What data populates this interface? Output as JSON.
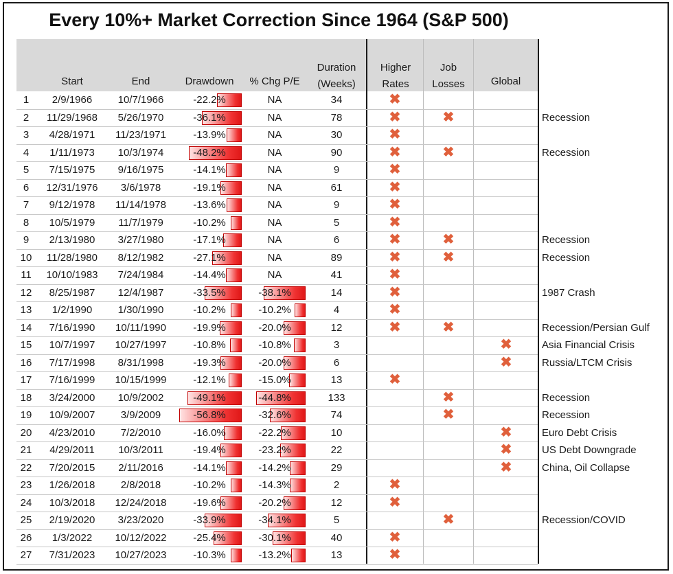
{
  "title": "Every 10%+ Market Correction Since 1964 (S&P 500)",
  "colors": {
    "bar": "#e01818",
    "cross": "#e0603c",
    "header": "#d9d9d9"
  },
  "columns": {
    "start": "Start",
    "end": "End",
    "drawdown": "Drawdown",
    "pe": "% Chg P/E",
    "duration_top": "Duration",
    "duration_bottom": "(Weeks)",
    "rates_top": "Higher",
    "rates_bottom": "Rates",
    "jobs_top": "Job",
    "jobs_bottom": "Losses",
    "global": "Global"
  },
  "cross_glyph": "✖",
  "chart_data": {
    "type": "table",
    "title": "Every 10%+ Market Correction Since 1964 (S&P 500)",
    "rows": [
      {
        "n": "1",
        "start": "2/9/1966",
        "end": "10/7/1966",
        "drawdown": "-22.2%",
        "dd": -22.2,
        "pe": "NA",
        "pe_val": null,
        "duration": "34",
        "rates": true,
        "jobs": false,
        "global": false,
        "note": ""
      },
      {
        "n": "2",
        "start": "11/29/1968",
        "end": "5/26/1970",
        "drawdown": "-36.1%",
        "dd": -36.1,
        "pe": "NA",
        "pe_val": null,
        "duration": "78",
        "rates": true,
        "jobs": true,
        "global": false,
        "note": "Recession"
      },
      {
        "n": "3",
        "start": "4/28/1971",
        "end": "11/23/1971",
        "drawdown": "-13.9%",
        "dd": -13.9,
        "pe": "NA",
        "pe_val": null,
        "duration": "30",
        "rates": true,
        "jobs": false,
        "global": false,
        "note": ""
      },
      {
        "n": "4",
        "start": "1/11/1973",
        "end": "10/3/1974",
        "drawdown": "-48.2%",
        "dd": -48.2,
        "pe": "NA",
        "pe_val": null,
        "duration": "90",
        "rates": true,
        "jobs": true,
        "global": false,
        "note": "Recession"
      },
      {
        "n": "5",
        "start": "7/15/1975",
        "end": "9/16/1975",
        "drawdown": "-14.1%",
        "dd": -14.1,
        "pe": "NA",
        "pe_val": null,
        "duration": "9",
        "rates": true,
        "jobs": false,
        "global": false,
        "note": ""
      },
      {
        "n": "6",
        "start": "12/31/1976",
        "end": "3/6/1978",
        "drawdown": "-19.1%",
        "dd": -19.1,
        "pe": "NA",
        "pe_val": null,
        "duration": "61",
        "rates": true,
        "jobs": false,
        "global": false,
        "note": ""
      },
      {
        "n": "7",
        "start": "9/12/1978",
        "end": "11/14/1978",
        "drawdown": "-13.6%",
        "dd": -13.6,
        "pe": "NA",
        "pe_val": null,
        "duration": "9",
        "rates": true,
        "jobs": false,
        "global": false,
        "note": ""
      },
      {
        "n": "8",
        "start": "10/5/1979",
        "end": "11/7/1979",
        "drawdown": "-10.2%",
        "dd": -10.2,
        "pe": "NA",
        "pe_val": null,
        "duration": "5",
        "rates": true,
        "jobs": false,
        "global": false,
        "note": ""
      },
      {
        "n": "9",
        "start": "2/13/1980",
        "end": "3/27/1980",
        "drawdown": "-17.1%",
        "dd": -17.1,
        "pe": "NA",
        "pe_val": null,
        "duration": "6",
        "rates": true,
        "jobs": true,
        "global": false,
        "note": "Recession"
      },
      {
        "n": "10",
        "start": "11/28/1980",
        "end": "8/12/1982",
        "drawdown": "-27.1%",
        "dd": -27.1,
        "pe": "NA",
        "pe_val": null,
        "duration": "89",
        "rates": true,
        "jobs": true,
        "global": false,
        "note": "Recession"
      },
      {
        "n": "11",
        "start": "10/10/1983",
        "end": "7/24/1984",
        "drawdown": "-14.4%",
        "dd": -14.4,
        "pe": "NA",
        "pe_val": null,
        "duration": "41",
        "rates": true,
        "jobs": false,
        "global": false,
        "note": ""
      },
      {
        "n": "12",
        "start": "8/25/1987",
        "end": "12/4/1987",
        "drawdown": "-33.5%",
        "dd": -33.5,
        "pe": "-38.1%",
        "pe_val": -38.1,
        "duration": "14",
        "rates": true,
        "jobs": false,
        "global": false,
        "note": "1987 Crash"
      },
      {
        "n": "13",
        "start": "1/2/1990",
        "end": "1/30/1990",
        "drawdown": "-10.2%",
        "dd": -10.2,
        "pe": "-10.2%",
        "pe_val": -10.2,
        "duration": "4",
        "rates": true,
        "jobs": false,
        "global": false,
        "note": ""
      },
      {
        "n": "14",
        "start": "7/16/1990",
        "end": "10/11/1990",
        "drawdown": "-19.9%",
        "dd": -19.9,
        "pe": "-20.0%",
        "pe_val": -20.0,
        "duration": "12",
        "rates": true,
        "jobs": true,
        "global": false,
        "note": "Recession/Persian Gulf"
      },
      {
        "n": "15",
        "start": "10/7/1997",
        "end": "10/27/1997",
        "drawdown": "-10.8%",
        "dd": -10.8,
        "pe": "-10.8%",
        "pe_val": -10.8,
        "duration": "3",
        "rates": false,
        "jobs": false,
        "global": true,
        "note": "Asia Financial Crisis"
      },
      {
        "n": "16",
        "start": "7/17/1998",
        "end": "8/31/1998",
        "drawdown": "-19.3%",
        "dd": -19.3,
        "pe": "-20.0%",
        "pe_val": -20.0,
        "duration": "6",
        "rates": false,
        "jobs": false,
        "global": true,
        "note": "Russia/LTCM Crisis"
      },
      {
        "n": "17",
        "start": "7/16/1999",
        "end": "10/15/1999",
        "drawdown": "-12.1%",
        "dd": -12.1,
        "pe": "-15.0%",
        "pe_val": -15.0,
        "duration": "13",
        "rates": true,
        "jobs": false,
        "global": false,
        "note": ""
      },
      {
        "n": "18",
        "start": "3/24/2000",
        "end": "10/9/2002",
        "drawdown": "-49.1%",
        "dd": -49.1,
        "pe": "-44.8%",
        "pe_val": -44.8,
        "duration": "133",
        "rates": false,
        "jobs": true,
        "global": false,
        "note": "Recession"
      },
      {
        "n": "19",
        "start": "10/9/2007",
        "end": "3/9/2009",
        "drawdown": "-56.8%",
        "dd": -56.8,
        "pe": "-32.6%",
        "pe_val": -32.6,
        "duration": "74",
        "rates": false,
        "jobs": true,
        "global": false,
        "note": "Recession"
      },
      {
        "n": "20",
        "start": "4/23/2010",
        "end": "7/2/2010",
        "drawdown": "-16.0%",
        "dd": -16.0,
        "pe": "-22.2%",
        "pe_val": -22.2,
        "duration": "10",
        "rates": false,
        "jobs": false,
        "global": true,
        "note": "Euro Debt Crisis"
      },
      {
        "n": "21",
        "start": "4/29/2011",
        "end": "10/3/2011",
        "drawdown": "-19.4%",
        "dd": -19.4,
        "pe": "-23.2%",
        "pe_val": -23.2,
        "duration": "22",
        "rates": false,
        "jobs": false,
        "global": true,
        "note": "US Debt Downgrade"
      },
      {
        "n": "22",
        "start": "7/20/2015",
        "end": "2/11/2016",
        "drawdown": "-14.1%",
        "dd": -14.1,
        "pe": "-14.2%",
        "pe_val": -14.2,
        "duration": "29",
        "rates": false,
        "jobs": false,
        "global": true,
        "note": "China, Oil Collapse"
      },
      {
        "n": "23",
        "start": "1/26/2018",
        "end": "2/8/2018",
        "drawdown": "-10.2%",
        "dd": -10.2,
        "pe": "-14.3%",
        "pe_val": -14.3,
        "duration": "2",
        "rates": true,
        "jobs": false,
        "global": false,
        "note": ""
      },
      {
        "n": "24",
        "start": "10/3/2018",
        "end": "12/24/2018",
        "drawdown": "-19.6%",
        "dd": -19.6,
        "pe": "-20.2%",
        "pe_val": -20.2,
        "duration": "12",
        "rates": true,
        "jobs": false,
        "global": false,
        "note": ""
      },
      {
        "n": "25",
        "start": "2/19/2020",
        "end": "3/23/2020",
        "drawdown": "-33.9%",
        "dd": -33.9,
        "pe": "-34.1%",
        "pe_val": -34.1,
        "duration": "5",
        "rates": false,
        "jobs": true,
        "global": false,
        "note": "Recession/COVID"
      },
      {
        "n": "26",
        "start": "1/3/2022",
        "end": "10/12/2022",
        "drawdown": "-25.4%",
        "dd": -25.4,
        "pe": "-30.1%",
        "pe_val": -30.1,
        "duration": "40",
        "rates": true,
        "jobs": false,
        "global": false,
        "note": ""
      },
      {
        "n": "27",
        "start": "7/31/2023",
        "end": "10/27/2023",
        "drawdown": "-10.3%",
        "dd": -10.3,
        "pe": "-13.2%",
        "pe_val": -13.2,
        "duration": "13",
        "rates": true,
        "jobs": false,
        "global": false,
        "note": ""
      }
    ]
  }
}
